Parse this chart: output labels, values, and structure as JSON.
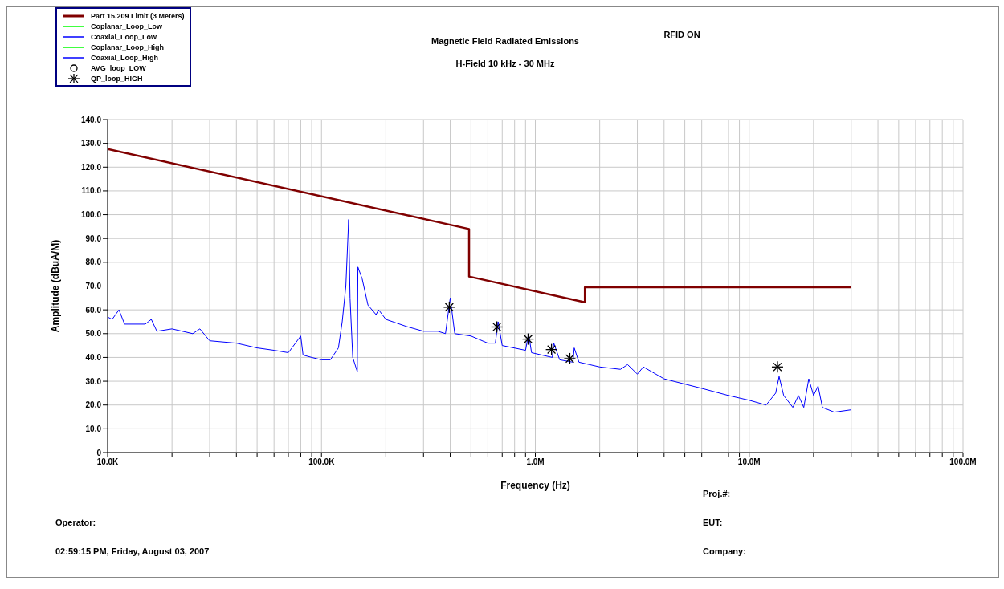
{
  "chart_data": {
    "type": "line",
    "subtitle": "Magnetic Field Radiated Emissions",
    "xlabel": "Frequency (Hz)",
    "ylabel": "Amplitude (dBuA/M)",
    "annotations": [
      "H-Field 10 kHz - 30 MHz",
      "RFID ON",
      "Proj.#:",
      "Operator:",
      "EUT:",
      "02:59:15 PM, Friday, August 03, 2007",
      "Company:"
    ],
    "xlim": [
      10000,
      100000000
    ],
    "xticks": [
      {
        "value": 10000,
        "label": "10.0K"
      },
      {
        "value": 20000,
        "label": null
      },
      {
        "value": 30000,
        "label": null
      },
      {
        "value": 40000,
        "label": null
      },
      {
        "value": 50000,
        "label": null
      },
      {
        "value": 60000,
        "label": null
      },
      {
        "value": 70000,
        "label": null
      },
      {
        "value": 80000,
        "label": null
      },
      {
        "value": 90000,
        "label": null
      },
      {
        "value": 100000,
        "label": "100.0K"
      },
      {
        "value": 200000,
        "label": null
      },
      {
        "value": 300000,
        "label": null
      },
      {
        "value": 400000,
        "label": null
      },
      {
        "value": 500000,
        "label": null
      },
      {
        "value": 600000,
        "label": null
      },
      {
        "value": 700000,
        "label": null
      },
      {
        "value": 800000,
        "label": null
      },
      {
        "value": 900000,
        "label": null
      },
      {
        "value": 1000000,
        "label": "1.0M"
      },
      {
        "value": 2000000,
        "label": null
      },
      {
        "value": 3000000,
        "label": null
      },
      {
        "value": 4000000,
        "label": null
      },
      {
        "value": 5000000,
        "label": null
      },
      {
        "value": 6000000,
        "label": null
      },
      {
        "value": 7000000,
        "label": null
      },
      {
        "value": 8000000,
        "label": null
      },
      {
        "value": 9000000,
        "label": null
      },
      {
        "value": 10000000,
        "label": "10.0M"
      },
      {
        "value": 20000000,
        "label": null
      },
      {
        "value": 30000000,
        "label": null
      },
      {
        "value": 40000000,
        "label": null
      },
      {
        "value": 50000000,
        "label": null
      },
      {
        "value": 60000000,
        "label": null
      },
      {
        "value": 70000000,
        "label": null
      },
      {
        "value": 80000000,
        "label": null
      },
      {
        "value": 90000000,
        "label": null
      },
      {
        "value": 100000000,
        "label": "100.0M"
      }
    ],
    "ylim": [
      0,
      140
    ],
    "yticks": [
      0,
      {
        "value": 10,
        "label": "10.0"
      },
      {
        "value": 20,
        "label": "20.0"
      },
      {
        "value": 30,
        "label": "30.0"
      },
      {
        "value": 40,
        "label": "40.0"
      },
      {
        "value": 50,
        "label": "50.0"
      },
      {
        "value": 60,
        "label": "60.0"
      },
      {
        "value": 70,
        "label": "70.0"
      },
      {
        "value": 80,
        "label": "80.0"
      },
      {
        "value": 90,
        "label": "90.0"
      },
      {
        "value": 100,
        "label": "100.0"
      },
      {
        "value": 110,
        "label": "110.0"
      },
      {
        "value": 120,
        "label": "120.0"
      },
      {
        "value": 130,
        "label": "130.0"
      },
      {
        "value": 140,
        "label": "140.0"
      }
    ],
    "log": "x",
    "grid": true,
    "legend": "top left",
    "line_style": "solid",
    "series": [
      {
        "name": "Part 15.209 Limit (3 Meters)",
        "color": "#800000",
        "x": [
          10000,
          490000,
          490000,
          1705000,
          1705000,
          30000000
        ],
        "values": [
          127.6,
          94,
          74,
          63.2,
          69.5,
          69.5
        ]
      },
      {
        "name": "Coplanar_Loop_Low",
        "color": "#00ff00"
      },
      {
        "name": "Coaxial_Loop_Low",
        "color": "#0000ff"
      },
      {
        "name": "Coplanar_Loop_High",
        "color": "#00ff00"
      },
      {
        "name": "Coaxial_Loop_High",
        "color": "#0000ff",
        "x": [
          10000,
          10500,
          11300,
          12000,
          15000,
          16000,
          17000,
          20000,
          25000,
          27000,
          30000,
          40000,
          50000,
          60000,
          70000,
          80000,
          82000,
          90000,
          100000,
          110000,
          120000,
          125000,
          130000,
          134000,
          136000,
          140000,
          147000,
          148000,
          155000,
          165000,
          180000,
          185000,
          200000,
          250000,
          300000,
          350000,
          380000,
          400000,
          420000,
          500000,
          600000,
          650000,
          670000,
          700000,
          900000,
          930000,
          960000,
          1200000,
          1220000,
          1300000,
          1500000,
          1520000,
          1600000,
          2000000,
          2500000,
          2700000,
          3000000,
          3200000,
          4000000,
          6000000,
          8000000,
          10000000,
          12000000,
          13300000,
          13800000,
          14500000,
          16000000,
          17000000,
          18000000,
          19000000,
          20000000,
          21000000,
          22000000,
          25000000,
          30000000
        ],
        "values": [
          57,
          56,
          60,
          54,
          54,
          56,
          51,
          52,
          50,
          52,
          47,
          46,
          44,
          43,
          42,
          49,
          41,
          40,
          39,
          39,
          44,
          55,
          70,
          98,
          65,
          40,
          34,
          78,
          73,
          62,
          58,
          60,
          56,
          53,
          51,
          51,
          50,
          65,
          50,
          49,
          46,
          46,
          55,
          45,
          43,
          50,
          42,
          40,
          46,
          39,
          38,
          44,
          38,
          36,
          35,
          37,
          33,
          36,
          31,
          27,
          24,
          22,
          20,
          25,
          32,
          24,
          19,
          24,
          19,
          31,
          24,
          28,
          19,
          17,
          18
        ]
      },
      {
        "name": "AVG_loop_LOW",
        "type": "scatter",
        "marker": "circle",
        "color": "#000000"
      },
      {
        "name": "QP_loop_HIGH",
        "type": "scatter",
        "marker": "cross",
        "color": "#000000",
        "x": [
          396000,
          661000,
          925000,
          1190000,
          1450000,
          13560000
        ],
        "values": [
          61.1,
          52.8,
          47.7,
          43.3,
          39.5,
          36
        ]
      }
    ]
  }
}
